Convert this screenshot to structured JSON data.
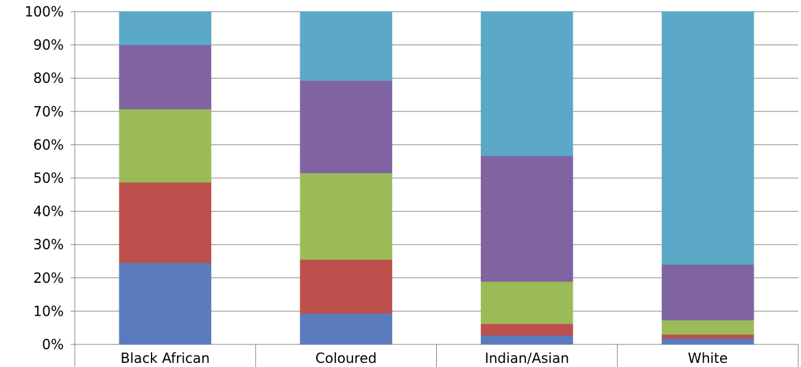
{
  "chart_data": {
    "type": "bar",
    "stacked": true,
    "normalized": true,
    "categories": [
      "Black African",
      "Coloured",
      "Indian/Asian",
      "White"
    ],
    "series": [
      {
        "color": "#5B7BBC",
        "values": [
          24.5,
          9.3,
          2.7,
          1.8
        ]
      },
      {
        "color": "#BD504D",
        "values": [
          24.2,
          16.2,
          3.5,
          1.2
        ]
      },
      {
        "color": "#9BBB59",
        "values": [
          22.0,
          26.0,
          12.7,
          4.3
        ]
      },
      {
        "color": "#8064A2",
        "values": [
          19.3,
          27.8,
          37.8,
          16.7
        ]
      },
      {
        "color": "#5BA8C7",
        "values": [
          10.0,
          20.7,
          43.3,
          76.0
        ]
      }
    ],
    "ylim": [
      0,
      100
    ],
    "yticks": [
      "0%",
      "10%",
      "20%",
      "30%",
      "40%",
      "50%",
      "60%",
      "70%",
      "80%",
      "90%",
      "100%"
    ],
    "grid": true,
    "legend": "none"
  }
}
